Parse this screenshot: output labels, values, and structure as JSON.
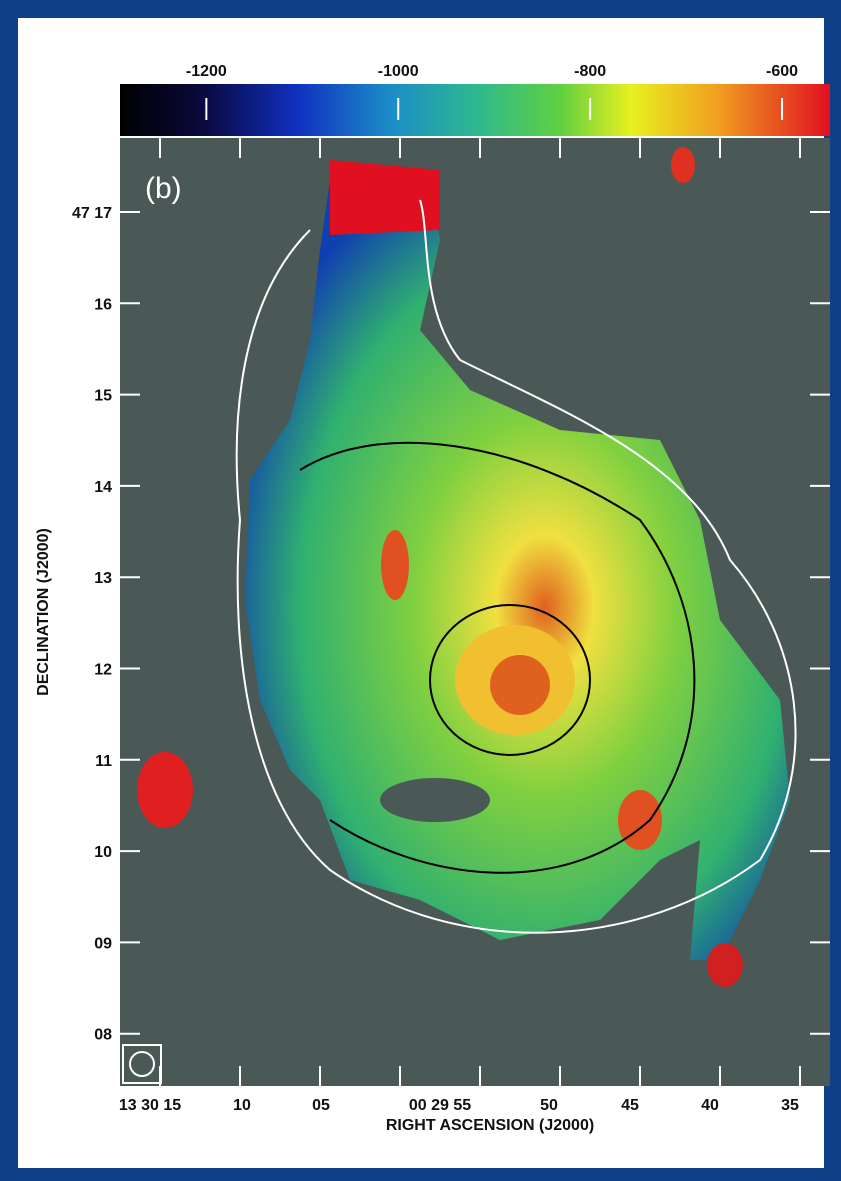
{
  "panel_label": "(b)",
  "colorbar": {
    "lim": [
      -1290,
      -550
    ],
    "ticks": [
      -1200,
      -1000,
      -800,
      -600
    ]
  },
  "y_axis": {
    "title": "DECLINATION (J2000)",
    "tick_labels": [
      "47 17",
      "16",
      "15",
      "14",
      "13",
      "12",
      "11",
      "10",
      "09",
      "08"
    ]
  },
  "x_axis": {
    "title": "RIGHT ASCENSION (J2000)",
    "tick_labels": [
      "13 30 15",
      "10",
      "05",
      "00  29 55",
      "50",
      "45",
      "40",
      "35"
    ]
  }
}
